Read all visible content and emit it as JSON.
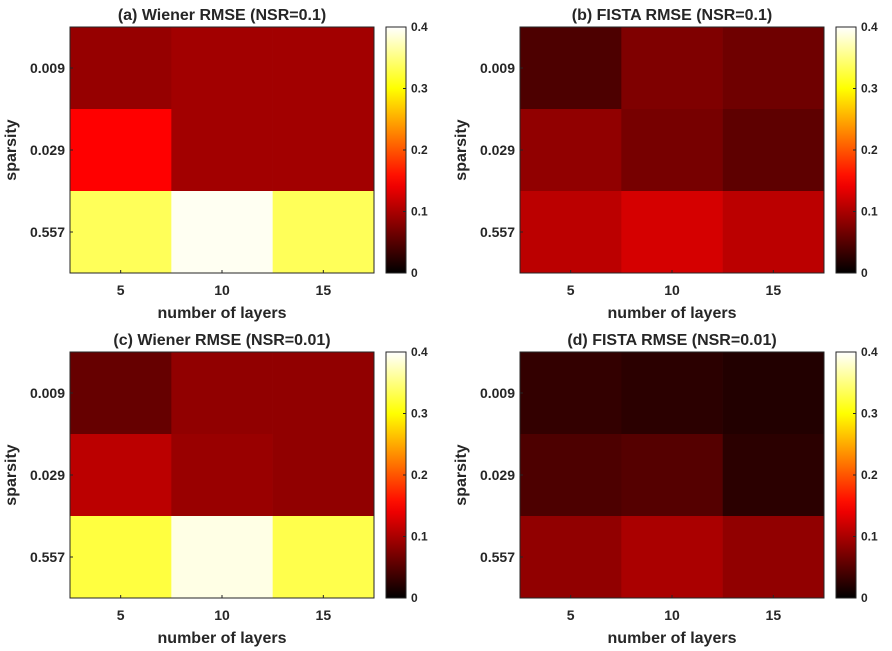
{
  "chart_data": [
    {
      "type": "heatmap",
      "title": "(a) Wiener RMSE (NSR=0.1)",
      "xlabel": "number of layers",
      "ylabel": "sparsity",
      "x_categories": [
        "5",
        "10",
        "15"
      ],
      "y_categories": [
        "0.009",
        "0.029",
        "0.557"
      ],
      "values": [
        [
          0.088,
          0.095,
          0.095
        ],
        [
          0.15,
          0.095,
          0.095
        ],
        [
          0.335,
          0.395,
          0.335
        ]
      ],
      "clim": [
        0,
        0.4
      ],
      "colorbar_ticks": [
        "0",
        "0.1",
        "0.2",
        "0.3",
        "0.4"
      ],
      "colormap": "hot"
    },
    {
      "type": "heatmap",
      "title": "(b) FISTA RMSE (NSR=0.1)",
      "xlabel": "number of layers",
      "ylabel": "sparsity",
      "x_categories": [
        "5",
        "10",
        "15"
      ],
      "y_categories": [
        "0.009",
        "0.029",
        "0.557"
      ],
      "values": [
        [
          0.045,
          0.075,
          0.065
        ],
        [
          0.085,
          0.07,
          0.055
        ],
        [
          0.11,
          0.125,
          0.11
        ]
      ],
      "clim": [
        0,
        0.4
      ],
      "colorbar_ticks": [
        "0",
        "0.1",
        "0.2",
        "0.3",
        "0.4"
      ],
      "colormap": "hot"
    },
    {
      "type": "heatmap",
      "title": "(c) Wiener RMSE (NSR=0.01)",
      "xlabel": "number of layers",
      "ylabel": "sparsity",
      "x_categories": [
        "5",
        "10",
        "15"
      ],
      "y_categories": [
        "0.009",
        "0.029",
        "0.557"
      ],
      "values": [
        [
          0.06,
          0.085,
          0.085
        ],
        [
          0.11,
          0.09,
          0.085
        ],
        [
          0.325,
          0.39,
          0.33
        ]
      ],
      "clim": [
        0,
        0.4
      ],
      "colorbar_ticks": [
        "0",
        "0.1",
        "0.2",
        "0.3",
        "0.4"
      ],
      "colormap": "hot"
    },
    {
      "type": "heatmap",
      "title": "(d) FISTA RMSE (NSR=0.01)",
      "xlabel": "number of layers",
      "ylabel": "sparsity",
      "x_categories": [
        "5",
        "10",
        "15"
      ],
      "y_categories": [
        "0.009",
        "0.029",
        "0.557"
      ],
      "values": [
        [
          0.03,
          0.025,
          0.02
        ],
        [
          0.045,
          0.05,
          0.025
        ],
        [
          0.085,
          0.1,
          0.085
        ]
      ],
      "clim": [
        0,
        0.4
      ],
      "colorbar_ticks": [
        "0",
        "0.1",
        "0.2",
        "0.3",
        "0.4"
      ],
      "colormap": "hot"
    }
  ]
}
